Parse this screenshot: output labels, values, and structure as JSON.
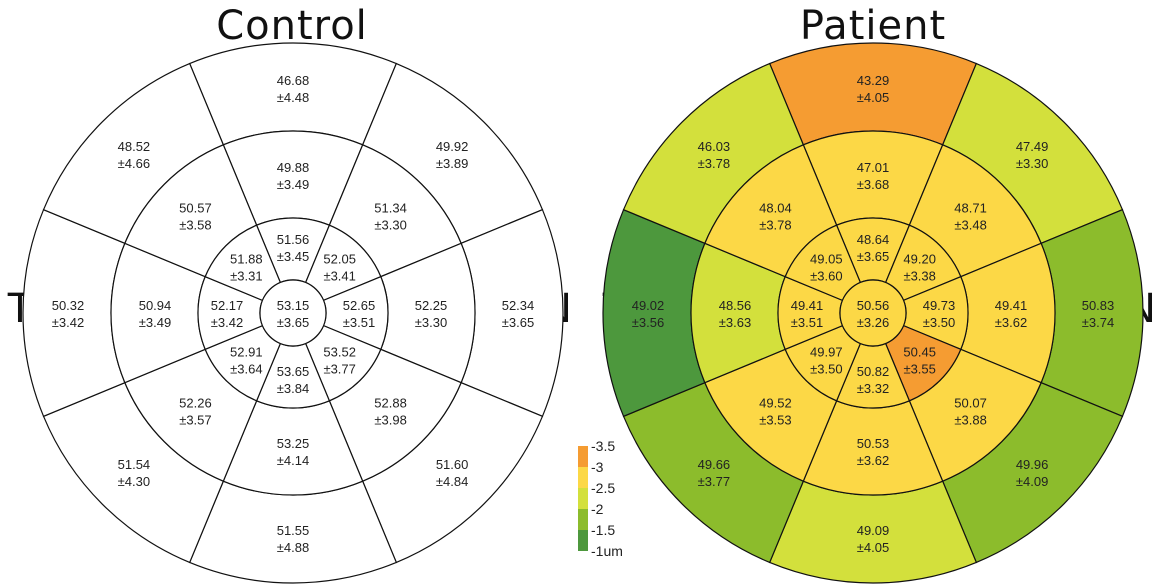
{
  "colors": {
    "none": "#ffffff",
    "orange": "#f59c32",
    "yellow": "#fcd846",
    "yellow_green": "#d3e03c",
    "light_green": "#8cbc2c",
    "dark_green": "#4d983d"
  },
  "legend": {
    "steps": [
      {
        "label": "-3.5",
        "color": "orange"
      },
      {
        "label": "-3",
        "color": "yellow"
      },
      {
        "label": "-2.5",
        "color": "yellow_green"
      },
      {
        "label": "-2",
        "color": "light_green"
      },
      {
        "label": "-1.5",
        "color": "dark_green"
      },
      {
        "label": "-1um",
        "color": ""
      }
    ]
  },
  "maps": [
    {
      "title": "Control",
      "left_label": "T",
      "right_label": "N",
      "center": {
        "mean": "53.15",
        "sd": "±3.65",
        "color": "none"
      },
      "rings": [
        {
          "sectors": [
            {
              "mean": "51.56",
              "sd": "±3.45",
              "color": "none"
            },
            {
              "mean": "52.05",
              "sd": "±3.41",
              "color": "none"
            },
            {
              "mean": "52.65",
              "sd": "±3.51",
              "color": "none"
            },
            {
              "mean": "53.52",
              "sd": "±3.77",
              "color": "none"
            },
            {
              "mean": "53.65",
              "sd": "±3.84",
              "color": "none"
            },
            {
              "mean": "52.91",
              "sd": "±3.64",
              "color": "none"
            },
            {
              "mean": "52.17",
              "sd": "±3.42",
              "color": "none"
            },
            {
              "mean": "51.88",
              "sd": "±3.31",
              "color": "none"
            }
          ]
        },
        {
          "sectors": [
            {
              "mean": "49.88",
              "sd": "±3.49",
              "color": "none"
            },
            {
              "mean": "51.34",
              "sd": "±3.30",
              "color": "none"
            },
            {
              "mean": "52.25",
              "sd": "±3.30",
              "color": "none"
            },
            {
              "mean": "52.88",
              "sd": "±3.98",
              "color": "none"
            },
            {
              "mean": "53.25",
              "sd": "±4.14",
              "color": "none"
            },
            {
              "mean": "52.26",
              "sd": "±3.57",
              "color": "none"
            },
            {
              "mean": "50.94",
              "sd": "±3.49",
              "color": "none"
            },
            {
              "mean": "50.57",
              "sd": "±3.58",
              "color": "none"
            }
          ]
        },
        {
          "sectors": [
            {
              "mean": "46.68",
              "sd": "±4.48",
              "color": "none"
            },
            {
              "mean": "49.92",
              "sd": "±3.89",
              "color": "none"
            },
            {
              "mean": "52.34",
              "sd": "±3.65",
              "color": "none"
            },
            {
              "mean": "51.60",
              "sd": "±4.84",
              "color": "none"
            },
            {
              "mean": "51.55",
              "sd": "±4.88",
              "color": "none"
            },
            {
              "mean": "51.54",
              "sd": "±4.30",
              "color": "none"
            },
            {
              "mean": "50.32",
              "sd": "±3.42",
              "color": "none"
            },
            {
              "mean": "48.52",
              "sd": "±4.66",
              "color": "none"
            }
          ]
        }
      ]
    },
    {
      "title": "Patient",
      "left_label": "T",
      "right_label": "N",
      "center": {
        "mean": "50.56",
        "sd": "±3.26",
        "color": "yellow"
      },
      "rings": [
        {
          "sectors": [
            {
              "mean": "48.64",
              "sd": "±3.65",
              "color": "yellow"
            },
            {
              "mean": "49.20",
              "sd": "±3.38",
              "color": "yellow"
            },
            {
              "mean": "49.73",
              "sd": "±3.50",
              "color": "yellow"
            },
            {
              "mean": "50.45",
              "sd": "±3.55",
              "color": "orange"
            },
            {
              "mean": "50.82",
              "sd": "±3.32",
              "color": "yellow"
            },
            {
              "mean": "49.97",
              "sd": "±3.50",
              "color": "yellow"
            },
            {
              "mean": "49.41",
              "sd": "±3.51",
              "color": "yellow"
            },
            {
              "mean": "49.05",
              "sd": "±3.60",
              "color": "yellow"
            }
          ]
        },
        {
          "sectors": [
            {
              "mean": "47.01",
              "sd": "±3.68",
              "color": "yellow"
            },
            {
              "mean": "48.71",
              "sd": "±3.48",
              "color": "yellow"
            },
            {
              "mean": "49.41",
              "sd": "±3.62",
              "color": "yellow"
            },
            {
              "mean": "50.07",
              "sd": "±3.88",
              "color": "yellow"
            },
            {
              "mean": "50.53",
              "sd": "±3.62",
              "color": "yellow"
            },
            {
              "mean": "49.52",
              "sd": "±3.53",
              "color": "yellow"
            },
            {
              "mean": "48.56",
              "sd": "±3.63",
              "color": "yellow_green"
            },
            {
              "mean": "48.04",
              "sd": "±3.78",
              "color": "yellow"
            }
          ]
        },
        {
          "sectors": [
            {
              "mean": "43.29",
              "sd": "±4.05",
              "color": "orange"
            },
            {
              "mean": "47.49",
              "sd": "±3.30",
              "color": "yellow_green"
            },
            {
              "mean": "50.83",
              "sd": "±3.74",
              "color": "light_green"
            },
            {
              "mean": "49.96",
              "sd": "±4.09",
              "color": "light_green"
            },
            {
              "mean": "49.09",
              "sd": "±4.05",
              "color": "yellow_green"
            },
            {
              "mean": "49.66",
              "sd": "±3.77",
              "color": "light_green"
            },
            {
              "mean": "49.02",
              "sd": "±3.56",
              "color": "dark_green"
            },
            {
              "mean": "46.03",
              "sd": "±3.78",
              "color": "yellow_green"
            }
          ]
        }
      ]
    }
  ]
}
